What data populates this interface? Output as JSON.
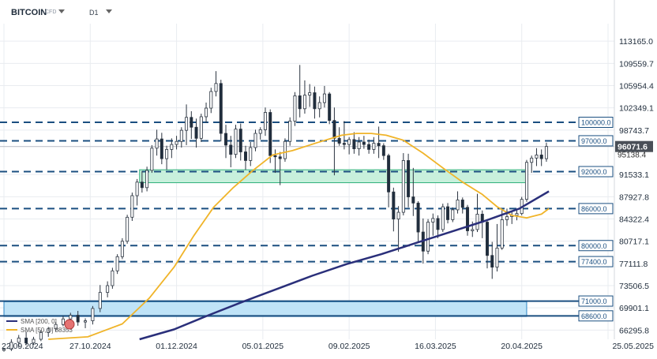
{
  "toolbar": {
    "symbol": "BITCOIN",
    "symbol_sub": "CFD",
    "timeframe": "D1"
  },
  "colors": {
    "grid": "#e9ecf0",
    "up": "#ffffff",
    "down": "#1f2d3d",
    "sma50": "#f0b429",
    "sma200": "#2a2f7a",
    "level": "#1b4f80",
    "green_zone": "#c8f0dc",
    "blue_zone": "#bfe3f7",
    "current": "#4a4f57"
  },
  "chart_data": {
    "type": "candlestick",
    "x_axis": {
      "type": "date",
      "range": [
        "2024-09-22",
        "2025-05-25"
      ],
      "tick_labels": [
        "22.09.2024",
        "27.10.2024",
        "01.12.2024",
        "05.01.2025",
        "09.02.2025",
        "16.03.2025",
        "20.04.2025",
        "25.05.2025"
      ],
      "tick_dates": [
        "2024-09-22",
        "2024-10-27",
        "2024-12-01",
        "2025-01-05",
        "2025-02-09",
        "2025-03-16",
        "2025-04-20",
        "2025-05-25"
      ]
    },
    "y_axis": {
      "range": [
        64800,
        116000
      ],
      "tick_labels": [
        "113165.0",
        "109559.7",
        "105954.4",
        "102349.1",
        "98743.7",
        "91533.1",
        "87927.8",
        "84322.4",
        "80717.1",
        "77111.8",
        "73506.5",
        "69901.1",
        "66295.8"
      ],
      "tick_values": [
        113165.0,
        109559.7,
        105954.4,
        102349.1,
        98743.7,
        91533.1,
        87927.8,
        84322.4,
        80717.1,
        77111.8,
        73506.5,
        69901.1,
        66295.8
      ],
      "grid": true
    },
    "levels": [
      {
        "value": 100000,
        "label": "100000.0"
      },
      {
        "value": 97000,
        "label": "97000.0"
      },
      {
        "value": 92000,
        "label": "92000.0"
      },
      {
        "value": 86000,
        "label": "86000.0"
      },
      {
        "value": 80000,
        "label": "80000.0"
      },
      {
        "value": 77400,
        "label": "77400.0"
      },
      {
        "value": 71000,
        "label": "71000.0"
      },
      {
        "value": 68600,
        "label": "68600.0"
      }
    ],
    "current_price": {
      "value": 96071.6,
      "label": "96071.6",
      "sub_label": "95138.4"
    },
    "zones": [
      {
        "from": "2024-11-16",
        "to": "2025-04-22",
        "low": 90200,
        "high": 92300
      },
      {
        "from": "2024-09-22",
        "to": "2025-04-22",
        "low": 68500,
        "high": 70900
      }
    ],
    "legend": {
      "entries": [
        "SMA [200, 0]",
        "SMA [50, 0]"
      ],
      "values": [
        "",
        "88353"
      ]
    },
    "candles": [
      [
        "2024-09-22",
        63000,
        63400,
        62800,
        63200
      ],
      [
        "2024-09-25",
        63200,
        64800,
        62900,
        64300
      ],
      [
        "2024-09-28",
        64300,
        65500,
        63500,
        65000
      ],
      [
        "2024-10-01",
        65000,
        66000,
        63800,
        64200
      ],
      [
        "2024-10-04",
        64200,
        65200,
        63900,
        64800
      ],
      [
        "2024-10-07",
        64800,
        66200,
        64500,
        65900
      ],
      [
        "2024-10-10",
        65900,
        66800,
        65200,
        66500
      ],
      [
        "2024-10-13",
        66500,
        67600,
        66000,
        67200
      ],
      [
        "2024-10-16",
        67200,
        68600,
        66900,
        68100
      ],
      [
        "2024-10-19",
        68100,
        69100,
        67700,
        68700
      ],
      [
        "2024-10-22",
        68700,
        69400,
        67000,
        67600
      ],
      [
        "2024-10-25",
        67600,
        68200,
        66600,
        67800
      ],
      [
        "2024-10-28",
        67800,
        70200,
        67200,
        69800
      ],
      [
        "2024-10-31",
        69800,
        73600,
        69200,
        72400
      ],
      [
        "2024-11-03",
        72400,
        74200,
        71600,
        73500
      ],
      [
        "2024-11-05",
        73500,
        76400,
        73000,
        75900
      ],
      [
        "2024-11-07",
        75900,
        78600,
        75400,
        78200
      ],
      [
        "2024-11-09",
        78200,
        81200,
        77800,
        80700
      ],
      [
        "2024-11-11",
        80700,
        85000,
        80300,
        84600
      ],
      [
        "2024-11-13",
        84600,
        88600,
        84000,
        88100
      ],
      [
        "2024-11-15",
        88100,
        90800,
        86500,
        90300
      ],
      [
        "2024-11-17",
        90300,
        92100,
        88600,
        89400
      ],
      [
        "2024-11-19",
        89400,
        92800,
        88800,
        92200
      ],
      [
        "2024-11-21",
        92200,
        96300,
        91800,
        95800
      ],
      [
        "2024-11-23",
        95800,
        98800,
        94600,
        97300
      ],
      [
        "2024-11-25",
        97300,
        98300,
        93200,
        94100
      ],
      [
        "2024-11-27",
        94100,
        96200,
        92300,
        95600
      ],
      [
        "2024-11-29",
        95600,
        97400,
        94200,
        96400
      ],
      [
        "2024-12-01",
        96400,
        97800,
        95600,
        96900
      ],
      [
        "2024-12-03",
        96900,
        99200,
        95900,
        98700
      ],
      [
        "2024-12-05",
        98700,
        102900,
        96300,
        100800
      ],
      [
        "2024-12-07",
        100800,
        101800,
        97300,
        99200
      ],
      [
        "2024-12-09",
        99200,
        100600,
        95900,
        97400
      ],
      [
        "2024-12-11",
        97400,
        101400,
        96800,
        100900
      ],
      [
        "2024-12-13",
        100900,
        103200,
        99900,
        102300
      ],
      [
        "2024-12-15",
        102300,
        105600,
        101500,
        105000
      ],
      [
        "2024-12-17",
        105000,
        108300,
        104200,
        106300
      ],
      [
        "2024-12-19",
        106300,
        106900,
        96900,
        98200
      ],
      [
        "2024-12-21",
        98200,
        99600,
        94200,
        96300
      ],
      [
        "2024-12-23",
        96300,
        97800,
        92700,
        94800
      ],
      [
        "2024-12-25",
        94800,
        99600,
        94200,
        98900
      ],
      [
        "2024-12-27",
        98900,
        99800,
        93800,
        95200
      ],
      [
        "2024-12-29",
        95200,
        96200,
        92300,
        93800
      ],
      [
        "2024-12-31",
        93800,
        96800,
        92900,
        95900
      ],
      [
        "2025-01-02",
        95900,
        98800,
        95300,
        98200
      ],
      [
        "2025-01-04",
        98200,
        99200,
        97200,
        98800
      ],
      [
        "2025-01-06",
        98800,
        102400,
        97800,
        101600
      ],
      [
        "2025-01-08",
        101600,
        102100,
        93400,
        94600
      ],
      [
        "2025-01-10",
        94600,
        95600,
        91800,
        94400
      ],
      [
        "2025-01-12",
        94400,
        95200,
        89800,
        94100
      ],
      [
        "2025-01-14",
        94100,
        97400,
        93600,
        96900
      ],
      [
        "2025-01-16",
        96900,
        100800,
        96200,
        100200
      ],
      [
        "2025-01-18",
        100200,
        104900,
        99400,
        104300
      ],
      [
        "2025-01-20",
        104300,
        109300,
        100800,
        102200
      ],
      [
        "2025-01-22",
        102200,
        106800,
        101400,
        104400
      ],
      [
        "2025-01-24",
        104400,
        106200,
        102500,
        104800
      ],
      [
        "2025-01-26",
        104800,
        105800,
        100600,
        102200
      ],
      [
        "2025-01-28",
        102200,
        104200,
        100800,
        103200
      ],
      [
        "2025-01-30",
        103200,
        105900,
        102400,
        104600
      ],
      [
        "2025-02-01",
        104600,
        104900,
        99700,
        100300
      ],
      [
        "2025-02-03",
        100300,
        102400,
        91400,
        97400
      ],
      [
        "2025-02-05",
        97400,
        99200,
        96200,
        96600
      ],
      [
        "2025-02-07",
        96600,
        100200,
        95600,
        96400
      ],
      [
        "2025-02-09",
        96400,
        97600,
        94800,
        97200
      ],
      [
        "2025-02-11",
        97200,
        98400,
        94900,
        95700
      ],
      [
        "2025-02-13",
        95700,
        97600,
        94600,
        96800
      ],
      [
        "2025-02-15",
        96800,
        97800,
        95700,
        96400
      ],
      [
        "2025-02-17",
        96400,
        97200,
        94900,
        95600
      ],
      [
        "2025-02-19",
        95600,
        97600,
        94900,
        96600
      ],
      [
        "2025-02-21",
        96600,
        99300,
        94200,
        96200
      ],
      [
        "2025-02-23",
        96200,
        96600,
        93900,
        94600
      ],
      [
        "2025-02-25",
        94600,
        94900,
        86200,
        88700
      ],
      [
        "2025-02-27",
        88700,
        89400,
        82300,
        84300
      ],
      [
        "2025-03-01",
        84300,
        86400,
        79000,
        85400
      ],
      [
        "2025-03-03",
        85400,
        95000,
        84900,
        93800
      ],
      [
        "2025-03-05",
        93800,
        94900,
        86200,
        87900
      ],
      [
        "2025-03-07",
        87900,
        92600,
        84800,
        86900
      ],
      [
        "2025-03-09",
        86900,
        87200,
        80600,
        82200
      ],
      [
        "2025-03-11",
        82200,
        84400,
        77100,
        79100
      ],
      [
        "2025-03-13",
        79100,
        84300,
        78600,
        83800
      ],
      [
        "2025-03-15",
        83800,
        85200,
        81600,
        84400
      ],
      [
        "2025-03-17",
        84400,
        84900,
        81200,
        82600
      ],
      [
        "2025-03-19",
        82600,
        86800,
        82200,
        86300
      ],
      [
        "2025-03-21",
        86300,
        86900,
        83600,
        84200
      ],
      [
        "2025-03-23",
        84200,
        86200,
        83800,
        85800
      ],
      [
        "2025-03-25",
        85800,
        88800,
        85200,
        87400
      ],
      [
        "2025-03-27",
        87400,
        87800,
        85200,
        86200
      ],
      [
        "2025-03-29",
        86200,
        86600,
        81600,
        82400
      ],
      [
        "2025-03-31",
        82400,
        83900,
        81400,
        82600
      ],
      [
        "2025-04-02",
        82600,
        88400,
        82200,
        85100
      ],
      [
        "2025-04-04",
        85100,
        85700,
        81200,
        83800
      ],
      [
        "2025-04-06",
        83800,
        84200,
        76300,
        78400
      ],
      [
        "2025-04-08",
        78400,
        80600,
        74600,
        76500
      ],
      [
        "2025-04-10",
        76500,
        83500,
        75800,
        79600
      ],
      [
        "2025-04-12",
        79600,
        85800,
        79300,
        84200
      ],
      [
        "2025-04-14",
        84200,
        86000,
        83200,
        84700
      ],
      [
        "2025-04-16",
        84700,
        85400,
        83500,
        84900
      ],
      [
        "2025-04-18",
        84900,
        85700,
        84100,
        85200
      ],
      [
        "2025-04-20",
        85200,
        87900,
        84900,
        87500
      ],
      [
        "2025-04-22",
        87500,
        93900,
        87100,
        93500
      ],
      [
        "2025-04-24",
        93500,
        94600,
        91800,
        94200
      ],
      [
        "2025-04-26",
        94200,
        95800,
        92900,
        94700
      ],
      [
        "2025-04-28",
        94700,
        95600,
        92900,
        94100
      ],
      [
        "2025-04-30",
        94100,
        96700,
        93600,
        96071.6
      ]
    ],
    "series": [
      {
        "name": "SMA [50, 0]",
        "type": "line",
        "points": [
          [
            "2024-10-10",
            64800
          ],
          [
            "2024-10-26",
            65200
          ],
          [
            "2024-11-09",
            67300
          ],
          [
            "2024-11-20",
            71500
          ],
          [
            "2024-11-30",
            76500
          ],
          [
            "2024-12-08",
            81600
          ],
          [
            "2024-12-16",
            86200
          ],
          [
            "2024-12-24",
            89400
          ],
          [
            "2025-01-01",
            92200
          ],
          [
            "2025-01-09",
            94700
          ],
          [
            "2025-01-17",
            95400
          ],
          [
            "2025-01-27",
            96700
          ],
          [
            "2025-02-06",
            97900
          ],
          [
            "2025-02-12",
            98200
          ],
          [
            "2025-02-18",
            98200
          ],
          [
            "2025-02-24",
            97900
          ],
          [
            "2025-03-03",
            97100
          ],
          [
            "2025-03-11",
            95000
          ],
          [
            "2025-03-19",
            92600
          ],
          [
            "2025-03-27",
            90300
          ],
          [
            "2025-04-04",
            88300
          ],
          [
            "2025-04-10",
            86300
          ],
          [
            "2025-04-16",
            84900
          ],
          [
            "2025-04-22",
            84500
          ],
          [
            "2025-04-28",
            85100
          ],
          [
            "2025-05-01",
            86000
          ]
        ]
      },
      {
        "name": "SMA [200, 0]",
        "type": "line",
        "points": [
          [
            "2024-11-16",
            64800
          ],
          [
            "2024-11-30",
            66400
          ],
          [
            "2024-12-14",
            68700
          ],
          [
            "2024-12-28",
            70900
          ],
          [
            "2025-01-11",
            73000
          ],
          [
            "2025-01-25",
            75100
          ],
          [
            "2025-02-08",
            77000
          ],
          [
            "2025-02-22",
            78600
          ],
          [
            "2025-03-08",
            80400
          ],
          [
            "2025-03-22",
            82200
          ],
          [
            "2025-04-05",
            84000
          ],
          [
            "2025-04-19",
            86000
          ],
          [
            "2025-05-01",
            88800
          ]
        ]
      }
    ]
  }
}
